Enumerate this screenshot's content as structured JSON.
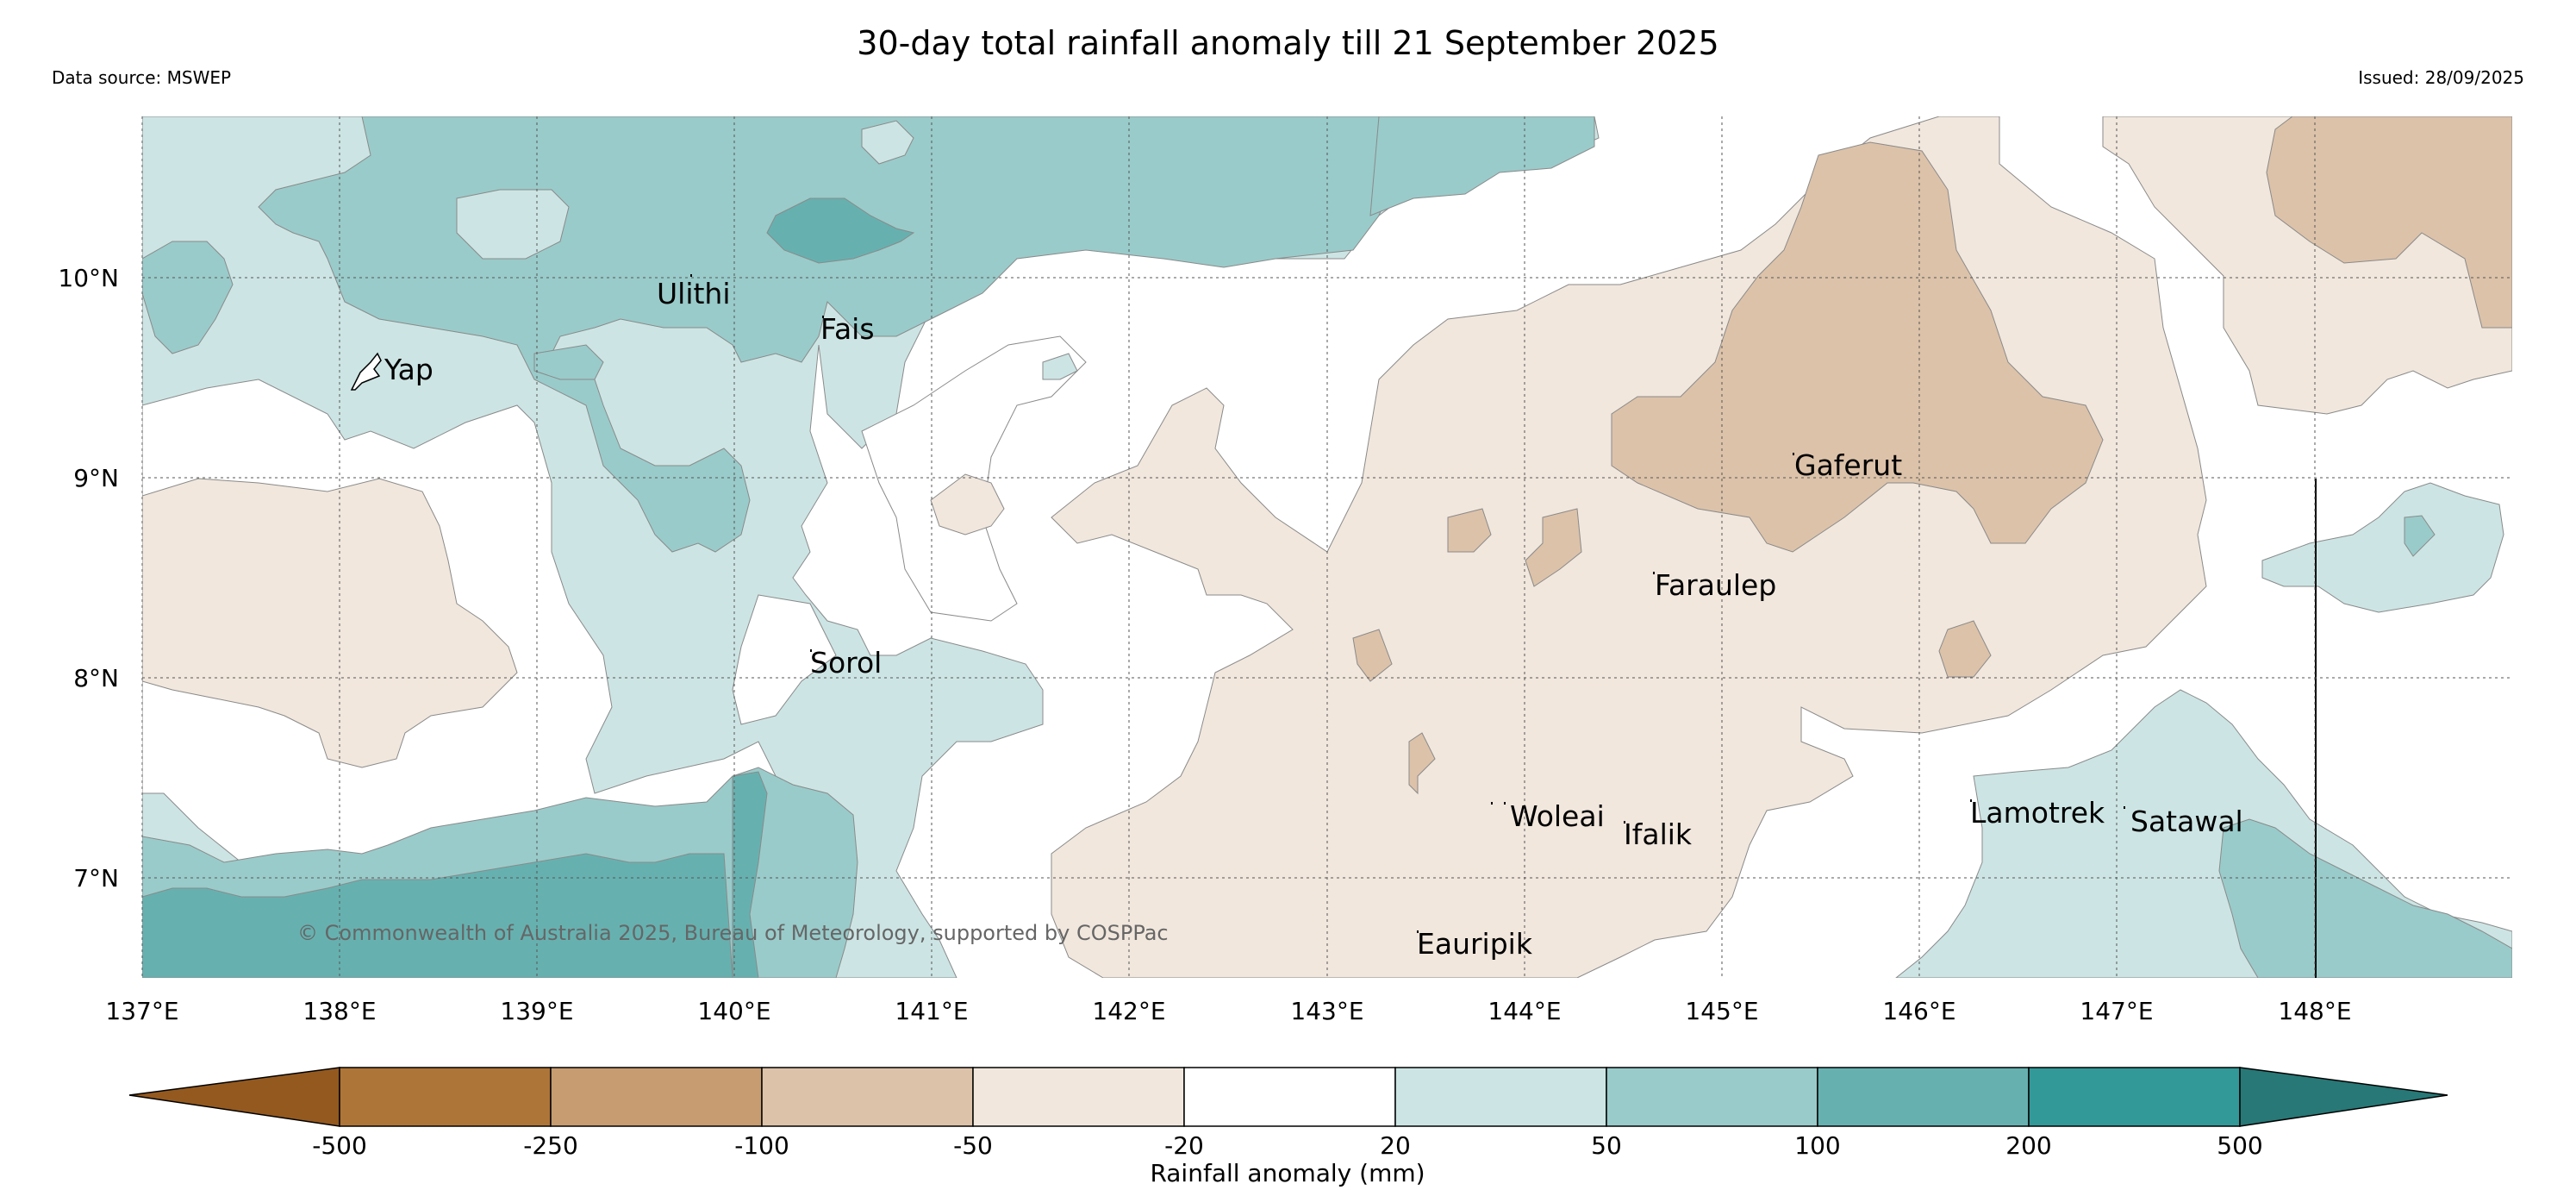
{
  "header": {
    "title": "30-day total rainfall anomaly till 21 September 2025",
    "data_source": "Data source: MSWEP",
    "issued": "Issued: 28/09/2025"
  },
  "map": {
    "lon_labels": [
      "137°E",
      "138°E",
      "139°E",
      "140°E",
      "141°E",
      "142°E",
      "143°E",
      "144°E",
      "145°E",
      "146°E",
      "147°E",
      "148°E"
    ],
    "lat_labels": [
      "10°N",
      "9°N",
      "8°N",
      "7°N"
    ],
    "places": [
      {
        "name": "Yap",
        "lon": 138.2,
        "lat": 9.5
      },
      {
        "name": "Ulithi",
        "lon": 139.8,
        "lat": 10.0
      },
      {
        "name": "Fais",
        "lon": 140.5,
        "lat": 9.8
      },
      {
        "name": "Gaferut",
        "lon": 145.4,
        "lat": 9.2
      },
      {
        "name": "Faraulep",
        "lon": 144.5,
        "lat": 8.6
      },
      {
        "name": "Sorol",
        "lon": 140.4,
        "lat": 8.1
      },
      {
        "name": "Woleai",
        "lon": 143.9,
        "lat": 7.4
      },
      {
        "name": "Ifalik",
        "lon": 144.4,
        "lat": 7.2
      },
      {
        "name": "Lamotrek",
        "lon": 146.3,
        "lat": 7.3
      },
      {
        "name": "Satawal",
        "lon": 147.0,
        "lat": 7.3
      },
      {
        "name": "Eauripik",
        "lon": 143.1,
        "lat": 6.7
      }
    ],
    "copyright": "© Commonwealth of Australia 2025, Bureau of Meteorology, supported by COSPPac"
  },
  "colorbar": {
    "label": "Rainfall anomaly (mm)",
    "ticks": [
      "-500",
      "-250",
      "-100",
      "-50",
      "-20",
      "20",
      "50",
      "100",
      "200",
      "500"
    ],
    "colors": {
      "extend_low": "#94591f",
      "c1": "#ae7538",
      "c2": "#c69c70",
      "c3": "#dcc2a9",
      "c4": "#f1e7dd",
      "c5": "#ffffff",
      "c6": "#cce5e4",
      "c7": "#99cbca",
      "c8": "#66b1b0",
      "c9": "#339998",
      "extend_high": "#277876"
    }
  }
}
